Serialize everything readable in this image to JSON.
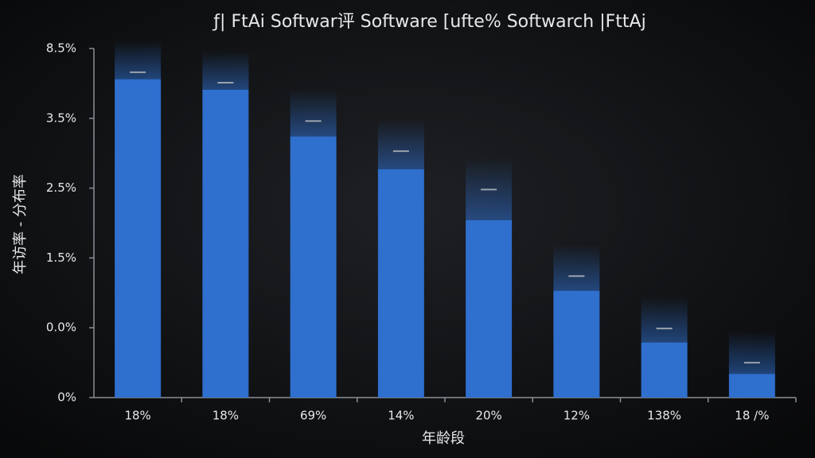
{
  "chart_data": {
    "type": "bar",
    "title": "ƒ| FtAi Softwar评 Software [ufte% Softwarch |FttAj",
    "x_label": "年龄段",
    "y_label": "年访率 - 分布率",
    "categories": [
      "18%",
      "18%",
      "69%",
      "14%",
      "20%",
      "12%",
      "138%",
      "18 /%"
    ],
    "values": [
      4.56,
      4.41,
      3.74,
      3.27,
      2.54,
      1.53,
      0.79,
      0.34
    ],
    "marker_values": [
      4.66,
      4.51,
      3.96,
      3.53,
      2.98,
      1.74,
      0.99,
      0.5
    ],
    "color": "#2f6fce",
    "marker_color": "#9aa3ad",
    "ylim": [
      0,
      5
    ],
    "yticks": [
      {
        "value": 0,
        "label": "0%"
      },
      {
        "value": 1,
        "label": "0.0%"
      },
      {
        "value": 2,
        "label": "1.5%"
      },
      {
        "value": 3,
        "label": "2.5%"
      },
      {
        "value": 4,
        "label": "3.5%"
      },
      {
        "value": 5,
        "label": "8.5%"
      }
    ]
  }
}
